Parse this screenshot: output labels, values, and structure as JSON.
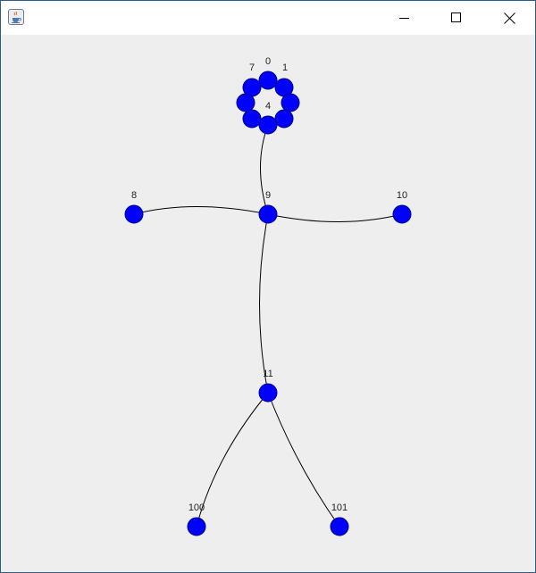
{
  "window": {
    "title": "",
    "icon": "java-coffee-cup-icon",
    "controls": {
      "minimize": "minimize-icon",
      "maximize": "maximize-icon",
      "close": "close-icon"
    }
  },
  "colors": {
    "node_fill": "#0000ff",
    "node_stroke": "#000080",
    "edge": "#000000",
    "canvas_bg": "#eeeeee",
    "titlebar_bg": "#ffffff"
  },
  "graph": {
    "nodes": [
      {
        "id": "0",
        "label": "0"
      },
      {
        "id": "1",
        "label": "1"
      },
      {
        "id": "2",
        "label": ""
      },
      {
        "id": "3",
        "label": ""
      },
      {
        "id": "4",
        "label": "4"
      },
      {
        "id": "5",
        "label": ""
      },
      {
        "id": "6",
        "label": ""
      },
      {
        "id": "7",
        "label": "7"
      },
      {
        "id": "8",
        "label": "8"
      },
      {
        "id": "9",
        "label": "9"
      },
      {
        "id": "10",
        "label": "10"
      },
      {
        "id": "11",
        "label": "11"
      },
      {
        "id": "100",
        "label": "100"
      },
      {
        "id": "101",
        "label": "101"
      }
    ],
    "edges": [
      {
        "from": "0",
        "to": "1"
      },
      {
        "from": "1",
        "to": "2"
      },
      {
        "from": "2",
        "to": "3"
      },
      {
        "from": "3",
        "to": "4"
      },
      {
        "from": "4",
        "to": "5"
      },
      {
        "from": "5",
        "to": "6"
      },
      {
        "from": "6",
        "to": "7"
      },
      {
        "from": "7",
        "to": "0"
      },
      {
        "from": "4",
        "to": "9"
      },
      {
        "from": "8",
        "to": "9"
      },
      {
        "from": "9",
        "to": "10"
      },
      {
        "from": "9",
        "to": "11"
      },
      {
        "from": "11",
        "to": "100"
      },
      {
        "from": "11",
        "to": "101"
      }
    ]
  }
}
